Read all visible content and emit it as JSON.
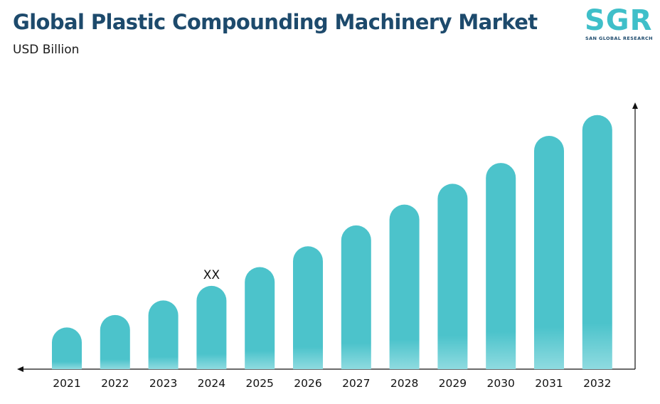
{
  "header": {
    "title": "Global Plastic Compounding Machinery Market",
    "subtitle": "USD Billion"
  },
  "logo": {
    "letters": "SGR",
    "tagline": "SAN GLOBAL RESEARCH",
    "colors": {
      "primary": "#3fbfc9",
      "dark": "#1d4a6c",
      "accent": "#f08a3c"
    }
  },
  "chart_data": {
    "type": "bar",
    "title": "Global Plastic Compounding Machinery Market",
    "ylabel": "USD Billion",
    "xlabel": "",
    "categories": [
      "2021",
      "2022",
      "2023",
      "2024",
      "2025",
      "2026",
      "2027",
      "2028",
      "2029",
      "2030",
      "2031",
      "2032"
    ],
    "values": [
      1.0,
      1.3,
      1.65,
      2.0,
      2.45,
      2.95,
      3.45,
      3.95,
      4.45,
      4.95,
      5.6,
      6.1
    ],
    "ylim": [
      0,
      6.3
    ],
    "annotations": [
      {
        "category": "2024",
        "text": "XX"
      }
    ],
    "bar_color": "#4cc3cb",
    "grid": false,
    "legend": "none"
  }
}
